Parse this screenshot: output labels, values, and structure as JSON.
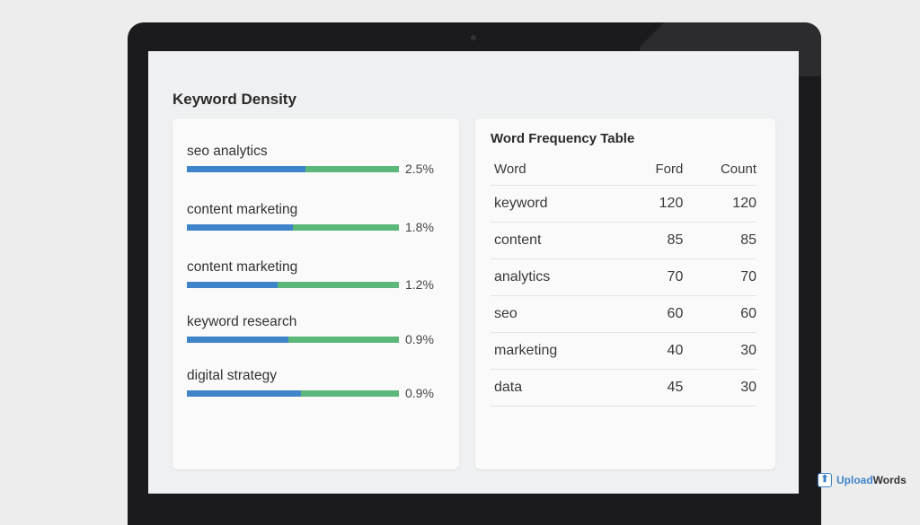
{
  "page_title": "Keyword Density",
  "keywords": [
    {
      "label": "seo analytics",
      "percent": "2.5%",
      "fill": 0.56
    },
    {
      "label": "content marketing",
      "percent": "1.8%",
      "fill": 0.5
    },
    {
      "label": "content marketing",
      "percent": "1.2%",
      "fill": 0.43
    },
    {
      "label": "keyword research",
      "percent": "0.9%",
      "fill": 0.48
    },
    {
      "label": "digital strategy",
      "percent": "0.9%",
      "fill": 0.54
    }
  ],
  "colors": {
    "bar_primary": "#3f83c9",
    "bar_secondary": "#5cb87a"
  },
  "table": {
    "title": "Word Frequency Table",
    "headers": [
      "Word",
      "Ford",
      "Count"
    ],
    "rows": [
      [
        "keyword",
        "120",
        "120"
      ],
      [
        "content",
        "85",
        "85"
      ],
      [
        "analytics",
        "70",
        "70"
      ],
      [
        "seo",
        "60",
        "60"
      ],
      [
        "marketing",
        "40",
        "30"
      ],
      [
        "data",
        "45",
        "30"
      ]
    ]
  },
  "logo": {
    "upload": "Upload",
    "words": "Words"
  }
}
